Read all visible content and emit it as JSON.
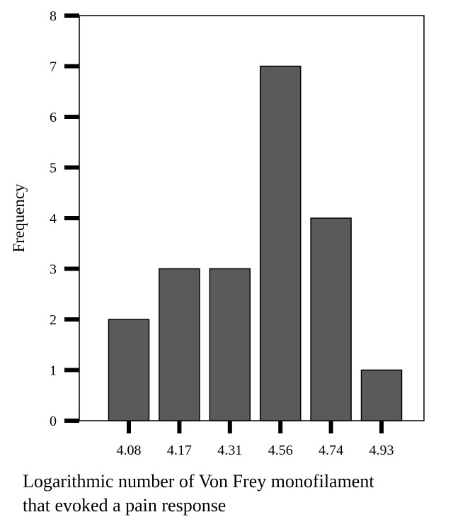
{
  "chart_data": {
    "type": "bar",
    "categories": [
      "4.08",
      "4.17",
      "4.31",
      "4.56",
      "4.74",
      "4.93"
    ],
    "values": [
      2,
      3,
      3,
      7,
      4,
      1
    ],
    "ylabel": "Frequency",
    "xlabel_lines": [
      "Logarithmic number of Von Frey monofilament",
      "that evoked a pain response"
    ],
    "ylim": [
      0,
      8
    ],
    "yticks": [
      "0",
      "1",
      "2",
      "3",
      "4",
      "5",
      "6",
      "7",
      "8"
    ],
    "grid": false,
    "colors": {
      "bar_fill": "#5a5a5a",
      "bar_stroke": "#000000",
      "axis": "#000000",
      "background": "#ffffff"
    }
  }
}
